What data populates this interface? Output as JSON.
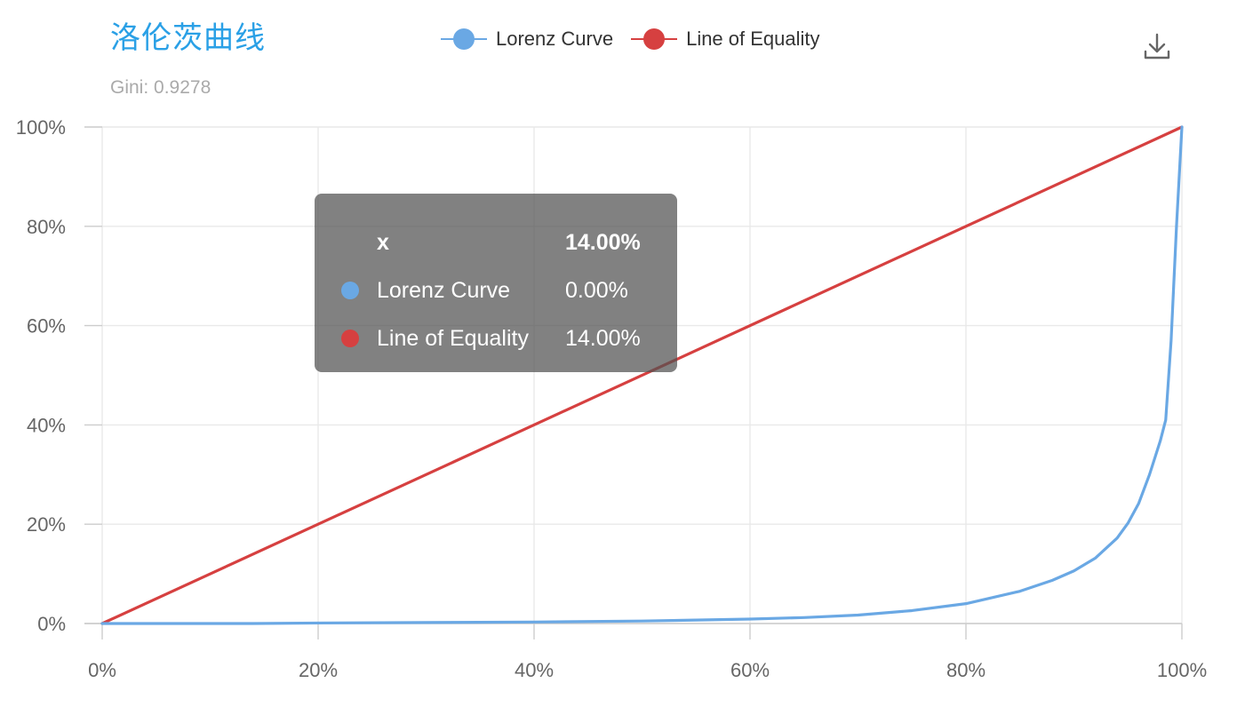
{
  "chart_data": {
    "type": "line",
    "title": "洛伦茨曲线",
    "subtitle": "Gini: 0.9278",
    "xlim": [
      0,
      100
    ],
    "ylim": [
      0,
      100
    ],
    "x_ticks": [
      0,
      20,
      40,
      60,
      80,
      100
    ],
    "y_ticks": [
      0,
      20,
      40,
      60,
      80,
      100
    ],
    "x_tick_labels": [
      "0%",
      "20%",
      "40%",
      "60%",
      "80%",
      "100%"
    ],
    "y_tick_labels": [
      "0%",
      "20%",
      "40%",
      "60%",
      "80%",
      "100%"
    ],
    "grid": true,
    "legend_position": "top-center",
    "series": [
      {
        "name": "Lorenz Curve",
        "color": "#6aa8e4",
        "x": [
          0,
          14,
          20,
          30,
          40,
          50,
          60,
          65,
          70,
          75,
          80,
          85,
          88,
          90,
          92,
          94,
          95,
          96,
          97,
          98,
          98.5,
          99,
          99.5,
          100
        ],
        "y": [
          0,
          0,
          0.1,
          0.2,
          0.3,
          0.5,
          0.9,
          1.2,
          1.7,
          2.6,
          4.0,
          6.5,
          8.7,
          10.6,
          13.2,
          17.2,
          20.2,
          24.2,
          30.0,
          36.8,
          41.0,
          57.0,
          80.0,
          100
        ]
      },
      {
        "name": "Line of Equality",
        "color": "#d64040",
        "x": [
          0,
          100
        ],
        "y": [
          0,
          100
        ]
      }
    ],
    "tooltip": {
      "header_label": "x",
      "header_value": "14.00%",
      "rows": [
        {
          "name": "Lorenz Curve",
          "value": "0.00%",
          "color": "#6aa8e4"
        },
        {
          "name": "Line of Equality",
          "value": "14.00%",
          "color": "#d64040"
        }
      ]
    }
  },
  "toolbar": {
    "download_icon": "download-icon"
  }
}
